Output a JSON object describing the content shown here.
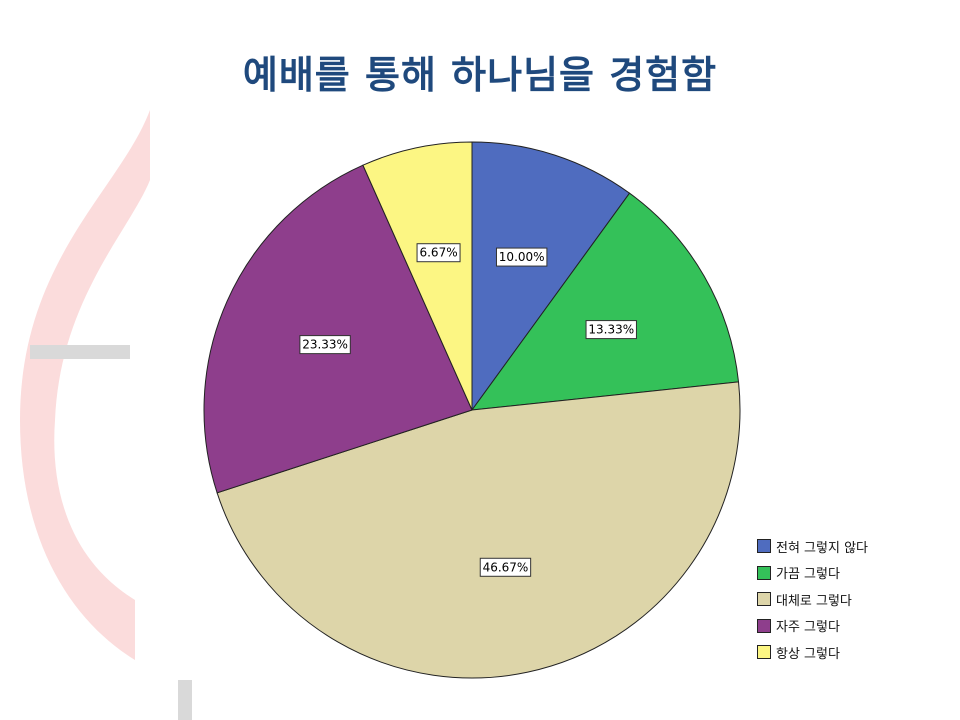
{
  "slide": {
    "title": "예배를 통해 하나님을 경험함"
  },
  "chart_data": {
    "type": "pie",
    "title": "",
    "slices": [
      {
        "label": "전혀 그렇지 않다",
        "value": 10.0,
        "display": "10.00%",
        "color": "#4f6cbf"
      },
      {
        "label": "가끔 그렇다",
        "value": 13.33,
        "display": "13.33%",
        "color": "#34c159"
      },
      {
        "label": "대체로 그렇다",
        "value": 46.67,
        "display": "46.67%",
        "color": "#ddd5a9"
      },
      {
        "label": "자주 그렇다",
        "value": 23.33,
        "display": "23.33%",
        "color": "#8e3e8c"
      },
      {
        "label": "항상 그렇다",
        "value": 6.67,
        "display": "6.67%",
        "color": "#fcf683"
      }
    ],
    "start_angle": "12 o'clock",
    "direction": "clockwise",
    "legend_position": "bottom-right"
  }
}
